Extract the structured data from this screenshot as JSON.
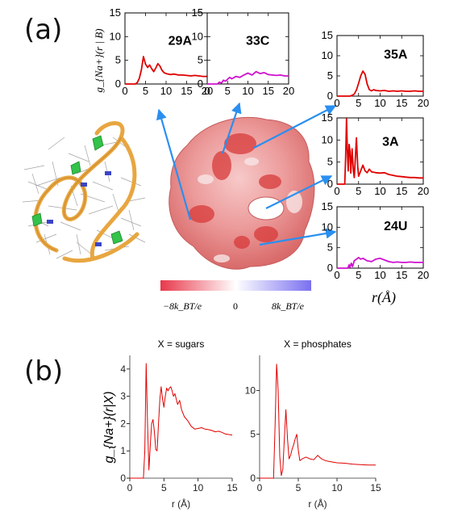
{
  "figure": {
    "panel_a_label": "(a)",
    "panel_b_label": "(b)",
    "a_ylabel": "g_{Na+}(r | B)",
    "a_xlabel": "r(Å)",
    "colorbar": {
      "left_label": "−8k_BT/e",
      "mid_label": "0",
      "right_label": "8k_BT/e",
      "low_color": "#e8384a",
      "mid_color": "#ffffff",
      "high_color": "#7a70f0"
    },
    "b_ylabel": "g_{Na+}(r|X)",
    "colors": {
      "red_series": "#e00000",
      "magenta_series": "#d010d0",
      "arrow": "#2a8ff0",
      "rna_backbone": "#e8a640"
    }
  },
  "chart_data": [
    {
      "id": "29A",
      "type": "line",
      "title": "29A",
      "xlim": [
        0,
        20
      ],
      "ylim": [
        0,
        15
      ],
      "xticks": [
        0,
        5,
        10,
        15,
        20
      ],
      "yticks": [
        0,
        5,
        10,
        15
      ],
      "series": [
        {
          "color": "#e00000",
          "x": [
            0,
            2.5,
            3.0,
            3.5,
            4.0,
            4.5,
            5.0,
            5.5,
            6.0,
            6.5,
            7.0,
            7.5,
            8.0,
            8.5,
            9.0,
            9.5,
            10,
            11,
            12,
            13,
            14,
            15,
            16,
            17,
            18,
            19,
            20
          ],
          "y": [
            0,
            0,
            0.3,
            1.2,
            3.0,
            5.8,
            4.2,
            3.5,
            4.0,
            3.2,
            2.6,
            3.4,
            4.3,
            3.8,
            2.9,
            2.4,
            2.2,
            2.0,
            2.1,
            1.9,
            1.9,
            1.8,
            1.7,
            1.8,
            1.7,
            1.6,
            1.6
          ]
        }
      ]
    },
    {
      "id": "33C",
      "type": "line",
      "title": "33C",
      "xlim": [
        0,
        20
      ],
      "ylim": [
        0,
        15
      ],
      "xticks": [
        0,
        5,
        10,
        15,
        20
      ],
      "yticks": [
        0,
        5,
        10,
        15
      ],
      "series": [
        {
          "color": "#d010d0",
          "x": [
            0,
            2.5,
            3.0,
            3.5,
            4.0,
            4.5,
            5.0,
            5.5,
            6.0,
            6.5,
            7.0,
            8.0,
            9.0,
            10,
            11,
            12,
            13,
            14,
            15,
            16,
            17,
            18,
            19,
            20
          ],
          "y": [
            0,
            0,
            0.4,
            0.2,
            0.8,
            0.6,
            1.0,
            1.4,
            1.1,
            1.3,
            1.6,
            1.4,
            1.9,
            2.3,
            1.9,
            2.6,
            2.2,
            2.4,
            2.0,
            1.9,
            1.8,
            1.9,
            1.7,
            1.7
          ]
        }
      ]
    },
    {
      "id": "35A",
      "type": "line",
      "title": "35A",
      "xlim": [
        0,
        20
      ],
      "ylim": [
        0,
        15
      ],
      "xticks": [
        0,
        5,
        10,
        15,
        20
      ],
      "yticks": [
        0,
        5,
        10,
        15
      ],
      "series": [
        {
          "color": "#e00000",
          "x": [
            0,
            3.0,
            3.5,
            4.0,
            4.5,
            5.0,
            5.5,
            6.0,
            6.5,
            7.0,
            7.5,
            8.0,
            8.5,
            9.0,
            10,
            11,
            12,
            13,
            14,
            15,
            16,
            17,
            18,
            19,
            20
          ],
          "y": [
            0,
            0,
            0.2,
            0.5,
            1.5,
            3.2,
            5.0,
            6.2,
            5.4,
            3.0,
            1.6,
            1.3,
            1.6,
            1.4,
            1.3,
            1.4,
            1.2,
            1.3,
            1.2,
            1.3,
            1.2,
            1.2,
            1.3,
            1.2,
            1.2
          ]
        }
      ]
    },
    {
      "id": "3A",
      "type": "line",
      "title": "3A",
      "xlim": [
        0,
        20
      ],
      "ylim": [
        0,
        15
      ],
      "xticks": [
        0,
        5,
        10,
        15,
        20
      ],
      "yticks": [
        0,
        5,
        10,
        15
      ],
      "series": [
        {
          "color": "#e00000",
          "x": [
            0,
            1.8,
            2.0,
            2.2,
            2.4,
            2.6,
            2.8,
            3.0,
            3.2,
            3.5,
            3.8,
            4.0,
            4.2,
            4.5,
            4.8,
            5.0,
            5.5,
            6.0,
            6.5,
            7.0,
            7.5,
            8.0,
            9.0,
            10,
            11,
            12,
            13,
            14,
            15,
            16,
            17,
            18,
            19,
            20
          ],
          "y": [
            0,
            0,
            6.0,
            14.8,
            8.0,
            3.0,
            9.0,
            7.5,
            2.5,
            8.0,
            3.0,
            1.5,
            5.0,
            10.5,
            4.0,
            1.8,
            3.0,
            4.3,
            3.0,
            2.6,
            3.4,
            2.8,
            2.6,
            2.5,
            2.6,
            2.2,
            2.0,
            1.8,
            1.7,
            1.6,
            1.5,
            1.5,
            1.4,
            1.4
          ]
        }
      ]
    },
    {
      "id": "24U",
      "type": "line",
      "title": "24U",
      "xlim": [
        0,
        20
      ],
      "ylim": [
        0,
        15
      ],
      "xticks": [
        0,
        5,
        10,
        15,
        20
      ],
      "yticks": [
        0,
        5,
        10,
        15
      ],
      "series": [
        {
          "color": "#d010d0",
          "x": [
            0,
            2.5,
            2.8,
            3.0,
            3.3,
            3.6,
            4.0,
            4.5,
            5.0,
            5.5,
            6.0,
            7.0,
            8.0,
            9.0,
            10,
            11,
            12,
            13,
            14,
            15,
            16,
            17,
            18,
            19,
            20
          ],
          "y": [
            0,
            0,
            0.8,
            0.2,
            1.2,
            0.4,
            1.8,
            2.2,
            2.6,
            2.2,
            2.4,
            1.8,
            1.6,
            2.2,
            2.4,
            2.0,
            1.6,
            1.4,
            1.5,
            1.4,
            1.4,
            1.5,
            1.4,
            1.4,
            1.4
          ]
        }
      ]
    },
    {
      "id": "sugars",
      "type": "line",
      "title": "X = sugars",
      "xlabel": "r (Å)",
      "ylabel": "g_{Na+}(r|X)",
      "xlim": [
        0,
        15
      ],
      "ylim": [
        0,
        4.5
      ],
      "xticks": [
        0,
        5,
        10,
        15
      ],
      "yticks": [
        0,
        1,
        2,
        3,
        4
      ],
      "series": [
        {
          "color": "#e00000",
          "x": [
            0,
            2.0,
            2.2,
            2.4,
            2.6,
            2.8,
            3.0,
            3.2,
            3.4,
            3.6,
            3.8,
            4.0,
            4.2,
            4.4,
            4.6,
            4.8,
            5.0,
            5.2,
            5.4,
            5.6,
            5.8,
            6.0,
            6.2,
            6.4,
            6.6,
            6.8,
            7.0,
            7.3,
            7.6,
            8.0,
            8.5,
            9.0,
            9.5,
            10,
            10.5,
            11,
            11.5,
            12,
            12.5,
            13,
            13.5,
            14,
            14.5,
            15
          ],
          "y": [
            0,
            0,
            1.0,
            4.2,
            2.0,
            0.3,
            1.2,
            2.0,
            2.15,
            1.7,
            1.05,
            1.0,
            2.0,
            2.9,
            3.35,
            2.9,
            2.6,
            3.0,
            3.3,
            3.2,
            3.3,
            3.35,
            3.2,
            3.0,
            3.1,
            2.9,
            2.7,
            2.85,
            2.5,
            2.25,
            2.1,
            1.9,
            1.8,
            1.82,
            1.85,
            1.8,
            1.78,
            1.75,
            1.7,
            1.72,
            1.68,
            1.62,
            1.6,
            1.58
          ]
        }
      ]
    },
    {
      "id": "phosphates",
      "type": "line",
      "title": "X = phosphates",
      "xlabel": "r (Å)",
      "xlim": [
        0,
        15
      ],
      "ylim": [
        0,
        14
      ],
      "xticks": [
        0,
        5,
        10,
        15
      ],
      "yticks": [
        0,
        5,
        10
      ],
      "series": [
        {
          "color": "#e00000",
          "x": [
            0,
            1.8,
            2.0,
            2.2,
            2.4,
            2.6,
            2.8,
            3.0,
            3.2,
            3.4,
            3.6,
            3.8,
            4.0,
            4.2,
            4.4,
            4.6,
            4.8,
            5.0,
            5.2,
            5.5,
            6.0,
            6.5,
            7.0,
            7.5,
            8.0,
            8.5,
            9.0,
            10,
            11,
            12,
            13,
            14,
            15
          ],
          "y": [
            0,
            0,
            6.0,
            13.0,
            10.0,
            2.5,
            0.3,
            1.0,
            4.5,
            7.8,
            4.5,
            2.2,
            2.6,
            3.3,
            3.8,
            4.5,
            5.0,
            3.2,
            2.0,
            2.2,
            2.4,
            2.2,
            2.1,
            2.6,
            2.2,
            2.0,
            1.9,
            1.75,
            1.7,
            1.6,
            1.55,
            1.5,
            1.5
          ]
        }
      ]
    }
  ]
}
